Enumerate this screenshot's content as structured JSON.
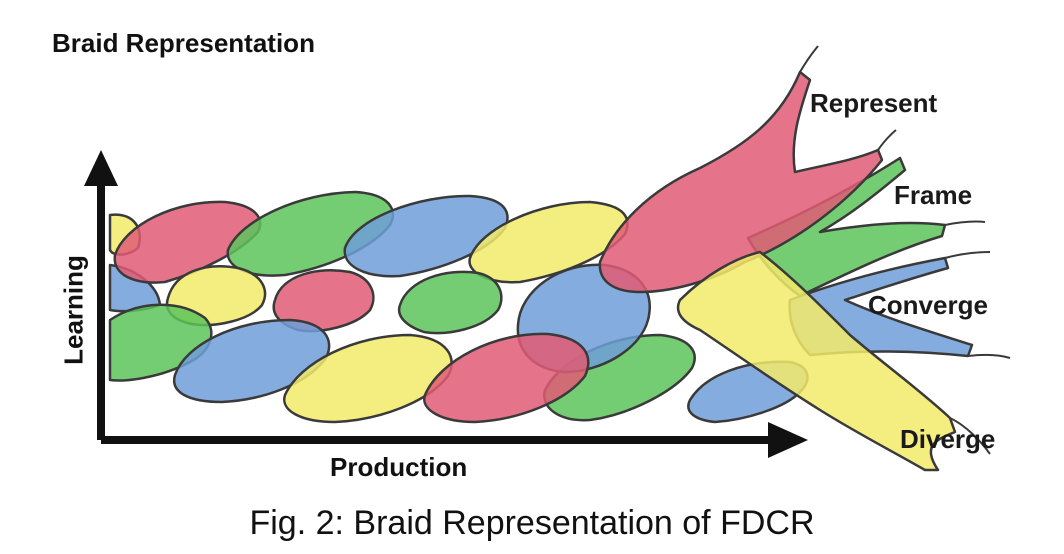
{
  "title": "Braid Representation",
  "caption": "Fig. 2: Braid Representation of FDCR",
  "axes": {
    "x_label": "Production",
    "y_label": "Learning"
  },
  "strands": [
    {
      "label": "Represent",
      "color": "#e05a74"
    },
    {
      "label": "Frame",
      "color": "#5cc45a"
    },
    {
      "label": "Converge",
      "color": "#6f9ed8"
    },
    {
      "label": "Diverge",
      "color": "#f2ea6a"
    }
  ],
  "outline_color": "#3a3a3a",
  "axis_color": "#111111"
}
